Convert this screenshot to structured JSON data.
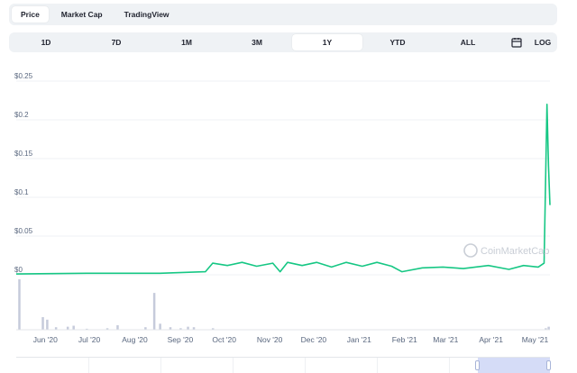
{
  "tabs": [
    {
      "label": "Price",
      "active": true
    },
    {
      "label": "Market Cap",
      "active": false
    },
    {
      "label": "TradingView",
      "active": false
    }
  ],
  "ranges": {
    "items": [
      "1D",
      "7D",
      "1M",
      "3M",
      "1Y",
      "YTD",
      "ALL"
    ],
    "active": "1Y",
    "calendar_icon": "calendar-icon",
    "log_label": "LOG"
  },
  "watermark": "CoinMarketCap",
  "colors": {
    "line": "#16c784",
    "volume": "#c6cbdb",
    "grid": "#eff2f5",
    "selection": "#d5dcf7"
  },
  "chart_data": {
    "type": "line",
    "y_ticks": [
      "$0",
      "$0.05",
      "$0.1",
      "$0.15",
      "$0.2",
      "$0.25"
    ],
    "y_tick_values": [
      0,
      0.05,
      0.1,
      0.15,
      0.2,
      0.25
    ],
    "ylim": [
      0,
      0.25
    ],
    "x_ticks": [
      "Jun '20",
      "Jul '20",
      "Aug '20",
      "Sep '20",
      "Oct '20",
      "Nov '20",
      "Dec '20",
      "Jan '21",
      "Feb '21",
      "Mar '21",
      "Apr '21",
      "May '21"
    ],
    "xlim": [
      "2020-05-14",
      "2021-05-13"
    ],
    "grid": true,
    "series": [
      {
        "values": [
          [
            "2020-05-14",
            0.001
          ],
          [
            "2020-07-01",
            0.002
          ],
          [
            "2020-08-20",
            0.002
          ],
          [
            "2020-09-20",
            0.004
          ],
          [
            "2020-09-25",
            0.015
          ],
          [
            "2020-10-05",
            0.012
          ],
          [
            "2020-10-15",
            0.016
          ],
          [
            "2020-10-25",
            0.011
          ],
          [
            "2020-11-05",
            0.015
          ],
          [
            "2020-11-10",
            0.004
          ],
          [
            "2020-11-15",
            0.016
          ],
          [
            "2020-11-25",
            0.012
          ],
          [
            "2020-12-05",
            0.016
          ],
          [
            "2020-12-15",
            0.01
          ],
          [
            "2020-12-25",
            0.016
          ],
          [
            "2021-01-05",
            0.011
          ],
          [
            "2021-01-15",
            0.016
          ],
          [
            "2021-01-25",
            0.011
          ],
          [
            "2021-02-01",
            0.004
          ],
          [
            "2021-02-15",
            0.009
          ],
          [
            "2021-03-01",
            0.01
          ],
          [
            "2021-03-15",
            0.008
          ],
          [
            "2021-04-01",
            0.012
          ],
          [
            "2021-04-15",
            0.007
          ],
          [
            "2021-04-25",
            0.012
          ],
          [
            "2021-05-05",
            0.01
          ],
          [
            "2021-05-09",
            0.015
          ],
          [
            "2021-05-11",
            0.22
          ],
          [
            "2021-05-12",
            0.14
          ],
          [
            "2021-05-13",
            0.09
          ]
        ]
      }
    ],
    "volume": {
      "values": [
        [
          "2020-05-16",
          1.0
        ],
        [
          "2020-06-01",
          0.25
        ],
        [
          "2020-06-04",
          0.2
        ],
        [
          "2020-06-10",
          0.05
        ],
        [
          "2020-06-18",
          0.06
        ],
        [
          "2020-06-22",
          0.08
        ],
        [
          "2020-07-01",
          0.02
        ],
        [
          "2020-07-15",
          0.03
        ],
        [
          "2020-07-22",
          0.09
        ],
        [
          "2020-08-10",
          0.05
        ],
        [
          "2020-08-16",
          0.73
        ],
        [
          "2020-08-20",
          0.12
        ],
        [
          "2020-08-27",
          0.05
        ],
        [
          "2020-09-03",
          0.03
        ],
        [
          "2020-09-08",
          0.06
        ],
        [
          "2020-09-12",
          0.05
        ],
        [
          "2020-09-25",
          0.03
        ],
        [
          "2021-05-10",
          0.03
        ],
        [
          "2021-05-12",
          0.06
        ]
      ]
    }
  }
}
